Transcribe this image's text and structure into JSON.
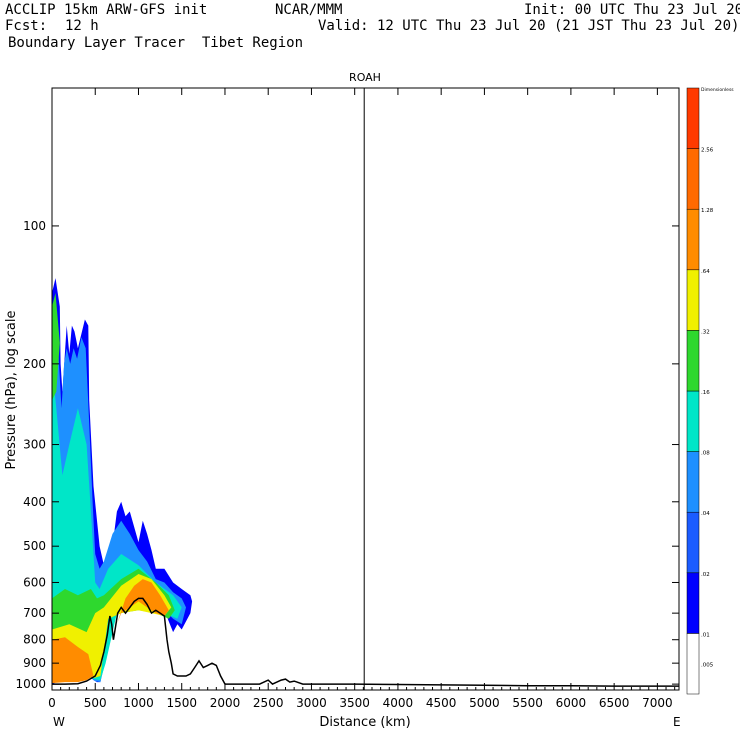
{
  "header": {
    "model": "ACCLIP 15km ARW-GFS init",
    "org": "NCAR/MMM",
    "init": "Init: 00 UTC Thu 23 Jul 20",
    "fcst_label": "Fcst:",
    "fcst_value": "12 h",
    "valid": "Valid: 12 UTC Thu 23 Jul 20 (21 JST Thu 23 Jul 20)",
    "field": "Boundary Layer Tracer  Tibet Region"
  },
  "chart_data": {
    "type": "heatmap",
    "title": "ROAH",
    "xlabel": "Distance (km)",
    "ylabel": "Pressure (hPa), log scale",
    "x_ticks": [
      0,
      500,
      1000,
      1500,
      2000,
      2500,
      3000,
      3500,
      4000,
      4500,
      5000,
      5500,
      6000,
      6500,
      7000
    ],
    "y_ticks": [
      100,
      200,
      300,
      400,
      500,
      600,
      700,
      800,
      900,
      1000
    ],
    "xlim": [
      0,
      7250
    ],
    "ylim_hpa": [
      1030,
      50
    ],
    "y_scale": "log",
    "left_end_label": "W",
    "right_end_label": "E",
    "marker_line_x_km": 3610,
    "colorbar": {
      "top_label": "Dimensionless",
      "labels": [
        ".005",
        ".01",
        ".02",
        ".04",
        ".08",
        ".16",
        ".32",
        ".64",
        "1.28",
        "2.56"
      ],
      "colors": [
        "#ffffff",
        "#0000ff",
        "#1b5cff",
        "#1e90ff",
        "#00e6c8",
        "#2ed82e",
        "#f0f000",
        "#ff8c00",
        "#ff6a00",
        "#ff3a00"
      ]
    },
    "terrain": {
      "x_km": [
        0,
        150,
        300,
        400,
        500,
        560,
        600,
        640,
        670,
        690,
        710,
        730,
        760,
        800,
        850,
        900,
        950,
        1000,
        1050,
        1100,
        1150,
        1200,
        1250,
        1300,
        1330,
        1350,
        1380,
        1400,
        1450,
        1500,
        1550,
        1600,
        1650,
        1700,
        1750,
        1800,
        1850,
        1900,
        1950,
        2000,
        2050,
        2200,
        2400,
        2500,
        2550,
        2600,
        2650,
        2700,
        2750,
        2800,
        2900,
        3000,
        3500,
        4000,
        4500,
        5000,
        5500,
        6000,
        6500,
        7000,
        7250
      ],
      "p_hpa": [
        1000,
        1000,
        998,
        985,
        960,
        910,
        850,
        780,
        710,
        740,
        800,
        760,
        700,
        680,
        700,
        680,
        660,
        650,
        650,
        670,
        700,
        690,
        700,
        710,
        800,
        850,
        900,
        950,
        960,
        960,
        960,
        950,
        920,
        890,
        920,
        910,
        900,
        910,
        960,
        1000,
        1000,
        1000,
        1000,
        980,
        1000,
        990,
        980,
        975,
        990,
        985,
        1000,
        1000,
        1000,
        1002,
        1004,
        1006,
        1008,
        1008,
        1010,
        1010,
        1010
      ]
    },
    "tracer_layers": [
      {
        "level": ".01",
        "color": "#0000ff",
        "polygons": [
          {
            "x_km": [
              0,
              40,
              90,
              100,
              120,
              170,
              200,
              230,
              260,
              300,
              380,
              420,
              430,
              480,
              550,
              600,
              700,
              750,
              800,
              850,
              900,
              1000,
              1050,
              1100,
              1150,
              1200,
              1300,
              1400,
              1500,
              1600,
              1620,
              1600,
              1500,
              1450,
              1400,
              1350,
              1300,
              1200,
              1100,
              1000,
              900,
              800,
              700,
              650,
              600,
              560,
              520,
              480,
              440,
              400,
              350,
              300,
              250,
              200,
              150,
              100,
              60,
              30,
              0
            ],
            "p_hpa": [
              140,
              130,
              150,
              200,
              230,
              165,
              190,
              165,
              170,
              185,
              160,
              165,
              240,
              370,
              500,
              550,
              500,
              420,
              400,
              430,
              420,
              490,
              440,
              470,
              510,
              560,
              560,
              600,
              620,
              640,
              660,
              700,
              760,
              740,
              770,
              730,
              690,
              650,
              640,
              650,
              680,
              690,
              700,
              740,
              900,
              990,
              990,
              980,
              960,
              900,
              920,
              880,
              870,
              880,
              900,
              930,
              970,
              995,
              1000
            ]
          }
        ]
      },
      {
        "level": ".04",
        "color": "#1e90ff",
        "polygons": [
          {
            "x_km": [
              0,
              60,
              110,
              140,
              170,
              210,
              250,
              290,
              340,
              390,
              430,
              470,
              500,
              550,
              600,
              700,
              800,
              900,
              1000,
              1100,
              1200,
              1300,
              1400,
              1500,
              1550,
              1500,
              1400,
              1300,
              1200,
              1100,
              1000,
              900,
              800,
              700,
              600,
              560,
              500,
              450,
              400,
              300,
              200,
              100,
              0
            ],
            "p_hpa": [
              160,
              170,
              250,
              200,
              185,
              200,
              185,
              195,
              175,
              185,
              270,
              400,
              520,
              560,
              540,
              470,
              440,
              470,
              510,
              540,
              590,
              600,
              630,
              650,
              680,
              740,
              720,
              690,
              670,
              660,
              670,
              690,
              700,
              710,
              920,
              990,
              985,
              970,
              930,
              900,
              900,
              940,
              990
            ]
          }
        ]
      },
      {
        "level": ".08",
        "color": "#00e6c8",
        "polygons": [
          {
            "x_km": [
              0,
              50,
              120,
              200,
              300,
              400,
              450,
              500,
              550,
              650,
              800,
              1000,
              1200,
              1400,
              1500,
              1450,
              1300,
              1100,
              900,
              750,
              620,
              560,
              480,
              400,
              300,
              200,
              100,
              0
            ],
            "p_hpa": [
              200,
              250,
              350,
              300,
              250,
              300,
              420,
              600,
              620,
              560,
              520,
              550,
              600,
              640,
              680,
              720,
              700,
              680,
              690,
              700,
              900,
              980,
              975,
              930,
              910,
              920,
              950,
              990
            ]
          }
        ]
      },
      {
        "level": ".16",
        "color": "#2ed82e",
        "polygons": [
          {
            "x_km": [
              0,
              40,
              90,
              50,
              0
            ],
            "p_hpa": [
              150,
              140,
              180,
              230,
              240
            ]
          },
          {
            "x_km": [
              0,
              150,
              300,
              450,
              520,
              600,
              800,
              1000,
              1200,
              1350,
              1420,
              1350,
              1200,
              1000,
              800,
              650,
              560,
              480,
              350,
              200,
              100,
              0
            ],
            "p_hpa": [
              650,
              620,
              640,
              620,
              650,
              640,
              590,
              560,
              600,
              640,
              690,
              720,
              700,
              690,
              700,
              720,
              960,
              970,
              930,
              930,
              960,
              990
            ]
          }
        ]
      },
      {
        "level": ".32",
        "color": "#f0f000",
        "polygons": [
          {
            "x_km": [
              0,
              200,
              400,
              500,
              600,
              800,
              1000,
              1150,
              1300,
              1380,
              1300,
              1150,
              1000,
              800,
              650,
              560,
              480,
              350,
              200,
              100,
              0
            ],
            "p_hpa": [
              760,
              740,
              770,
              700,
              680,
              610,
              575,
              590,
              640,
              680,
              710,
              700,
              690,
              700,
              720,
              960,
              970,
              930,
              930,
              960,
              990
            ]
          }
        ]
      },
      {
        "level": ".64",
        "color": "#ff8c00",
        "polygons": [
          {
            "x_km": [
              0,
              150,
              300,
              420,
              480,
              400,
              300,
              150,
              0
            ],
            "p_hpa": [
              800,
              790,
              830,
              860,
              960,
              980,
              990,
              990,
              995
            ]
          },
          {
            "x_km": [
              750,
              850,
              950,
              1050,
              1150,
              1250,
              1350,
              1300,
              1200,
              1100,
              1000,
              900,
              800,
              750
            ],
            "p_hpa": [
              740,
              650,
              610,
              590,
              600,
              640,
              690,
              710,
              700,
              680,
              660,
              680,
              700,
              740
            ]
          }
        ]
      }
    ]
  }
}
